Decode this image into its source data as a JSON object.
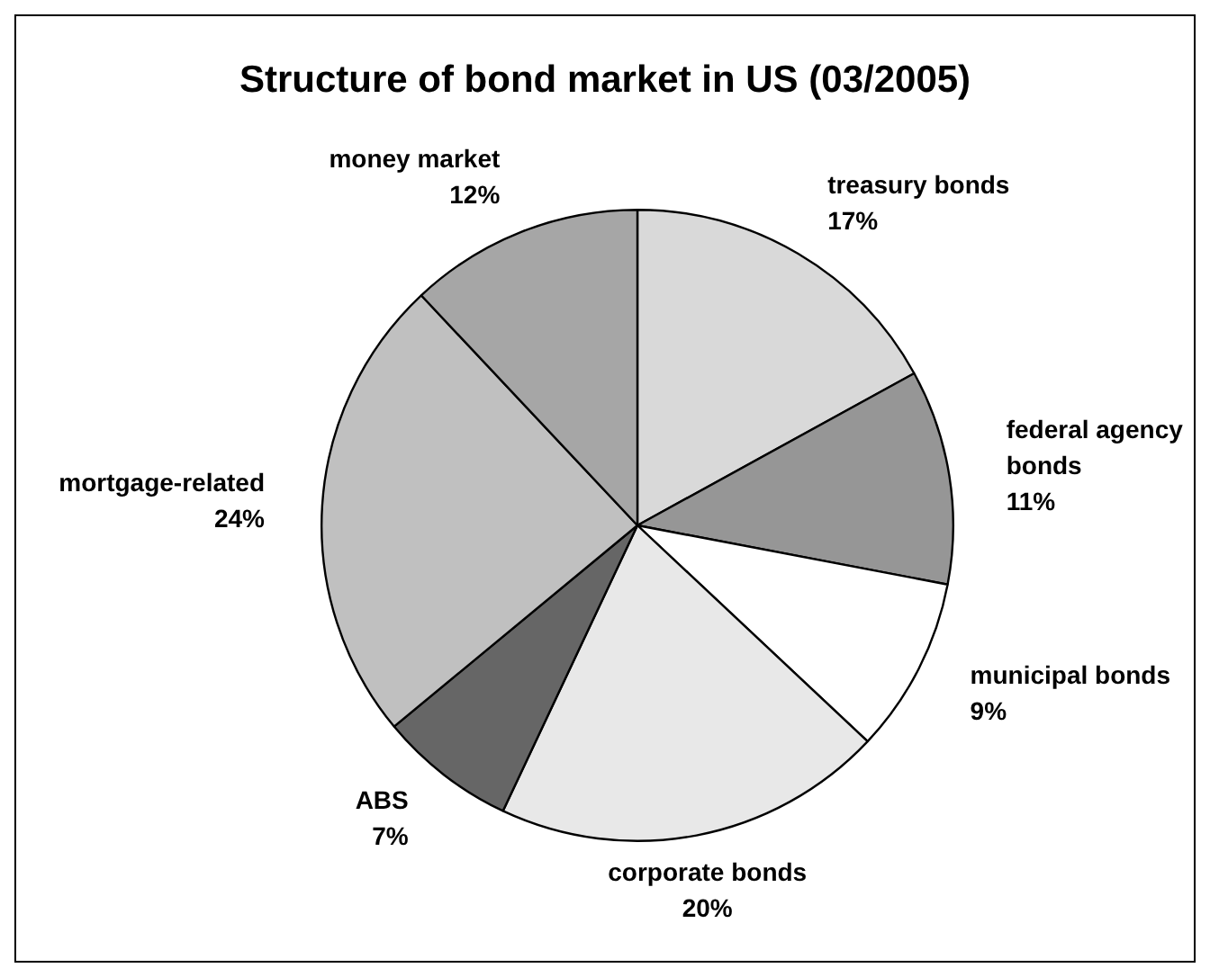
{
  "chart_data": {
    "type": "pie",
    "title": "Structure of bond market in US (03/2005)",
    "categories": [
      "treasury bonds",
      "federal agency bonds",
      "municipal bonds",
      "corporate bonds",
      "ABS",
      "mortgage-related",
      "money market"
    ],
    "values": [
      17,
      11,
      9,
      20,
      7,
      24,
      12
    ],
    "value_labels": [
      "17%",
      "11%",
      "9%",
      "20%",
      "7%",
      "24%",
      "12%"
    ],
    "colors": [
      "#d9d9d9",
      "#969696",
      "#ffffff",
      "#e8e8e8",
      "#666666",
      "#c0c0c0",
      "#a6a6a6"
    ],
    "legend": false
  }
}
